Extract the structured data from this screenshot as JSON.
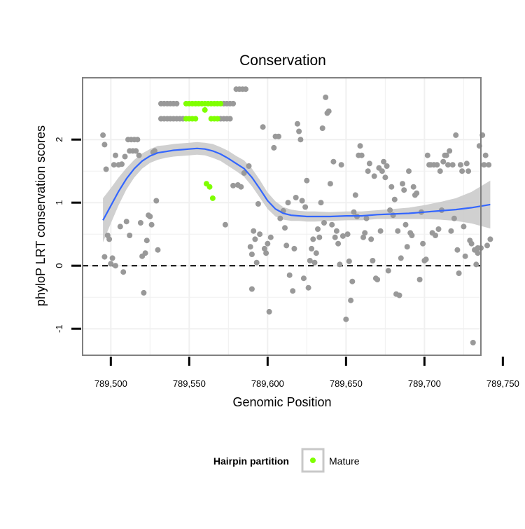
{
  "chart_data": {
    "type": "scatter",
    "title": "Conservation",
    "xlabel": "Genomic Position",
    "ylabel": "phyloP LRT conservation scores",
    "xlim": [
      789482,
      789736
    ],
    "ylim": [
      -1.42,
      2.98
    ],
    "x_ticks": [
      {
        "value": 789500,
        "label": "789,500"
      },
      {
        "value": 789550,
        "label": "789,550"
      },
      {
        "value": 789600,
        "label": "789,600"
      },
      {
        "value": 789650,
        "label": "789,650"
      },
      {
        "value": 789700,
        "label": "789,700"
      },
      {
        "value": 789750,
        "label": "789,750"
      }
    ],
    "y_ticks": [
      {
        "value": -1,
        "label": "-1"
      },
      {
        "value": 0,
        "label": "0"
      },
      {
        "value": 1,
        "label": "1"
      },
      {
        "value": 2,
        "label": "2"
      }
    ],
    "grid": true,
    "reference_line": {
      "y": 0,
      "style": "dashed"
    },
    "legend": {
      "title": "Hairpin partition",
      "position": "bottom",
      "entries": [
        {
          "label": "Mature",
          "color": "#7fff00"
        }
      ]
    },
    "colors": {
      "other_points": "#999999",
      "mature_points": "#7fff00",
      "smooth_line": "#3366ff",
      "confidence_band": "#c8c8c8",
      "panel_border": "#808080",
      "grid": "#f0f0f0"
    },
    "series": [
      {
        "color": "#999999",
        "points": [
          [
            789495,
            2.07
          ],
          [
            789496,
            1.92
          ],
          [
            789497,
            1.53
          ],
          [
            789498,
            0.48
          ],
          [
            789499,
            0.42
          ],
          [
            789500,
            0.03
          ],
          [
            789496,
            0.14
          ],
          [
            789501,
            0.12
          ],
          [
            789503,
            0.0
          ],
          [
            789502,
            1.6
          ],
          [
            789503,
            1.75
          ],
          [
            789505,
            1.6
          ],
          [
            789506,
            0.62
          ],
          [
            789508,
            -0.1
          ],
          [
            789507,
            1.61
          ],
          [
            789509,
            1.73
          ],
          [
            789511,
            2.0
          ],
          [
            789512,
            1.82
          ],
          [
            789513,
            2.0
          ],
          [
            789514,
            1.82
          ],
          [
            789515,
            2.0
          ],
          [
            789516,
            1.82
          ],
          [
            789517,
            2.0
          ],
          [
            789518,
            1.75
          ],
          [
            789519,
            0.68
          ],
          [
            789520,
            0.15
          ],
          [
            789521,
            -0.43
          ],
          [
            789522,
            0.2
          ],
          [
            789523,
            0.4
          ],
          [
            789524,
            0.8
          ],
          [
            789525,
            0.78
          ],
          [
            789526,
            0.65
          ],
          [
            789527,
            1.8
          ],
          [
            789528,
            1.82
          ],
          [
            789529,
            1.03
          ],
          [
            789530,
            0.25
          ],
          [
            789510,
            0.7
          ],
          [
            789512,
            0.48
          ],
          [
            789532,
            2.57
          ],
          [
            789534,
            2.57
          ],
          [
            789536,
            2.57
          ],
          [
            789538,
            2.57
          ],
          [
            789540,
            2.57
          ],
          [
            789542,
            2.57
          ],
          [
            789532,
            2.33
          ],
          [
            789534,
            2.33
          ],
          [
            789536,
            2.33
          ],
          [
            789538,
            2.33
          ],
          [
            789540,
            2.33
          ],
          [
            789542,
            2.33
          ],
          [
            789544,
            2.33
          ],
          [
            789546,
            2.33
          ],
          [
            789572,
            2.57
          ],
          [
            789574,
            2.57
          ],
          [
            789576,
            2.57
          ],
          [
            789578,
            2.57
          ],
          [
            789570,
            2.33
          ],
          [
            789572,
            2.33
          ],
          [
            789574,
            2.33
          ],
          [
            789576,
            2.33
          ],
          [
            789580,
            2.8
          ],
          [
            789582,
            2.8
          ],
          [
            789584,
            2.8
          ],
          [
            789586,
            2.8
          ],
          [
            789573,
            0.65
          ],
          [
            789578,
            1.27
          ],
          [
            789581,
            1.28
          ],
          [
            789583,
            1.25
          ],
          [
            789585,
            1.47
          ],
          [
            789588,
            1.58
          ],
          [
            789589,
            0.3
          ],
          [
            789590,
            0.18
          ],
          [
            789591,
            0.55
          ],
          [
            789592,
            0.42
          ],
          [
            789593,
            0.05
          ],
          [
            789594,
            0.98
          ],
          [
            789595,
            0.5
          ],
          [
            789597,
            2.2
          ],
          [
            789598,
            0.27
          ],
          [
            789599,
            0.2
          ],
          [
            789600,
            0.35
          ],
          [
            789601,
            -0.73
          ],
          [
            789590,
            -0.37
          ],
          [
            789602,
            0.45
          ],
          [
            789604,
            1.87
          ],
          [
            789605,
            2.05
          ],
          [
            789607,
            2.05
          ],
          [
            789608,
            0.75
          ],
          [
            789610,
            0.87
          ],
          [
            789611,
            0.6
          ],
          [
            789612,
            0.32
          ],
          [
            789613,
            1.0
          ],
          [
            789614,
            -0.15
          ],
          [
            789616,
            -0.4
          ],
          [
            789617,
            0.27
          ],
          [
            789618,
            1.08
          ],
          [
            789619,
            2.25
          ],
          [
            789620,
            2.13
          ],
          [
            789621,
            2.0
          ],
          [
            789622,
            1.03
          ],
          [
            789623,
            -0.2
          ],
          [
            789624,
            0.93
          ],
          [
            789625,
            1.35
          ],
          [
            789626,
            -0.35
          ],
          [
            789627,
            0.08
          ],
          [
            789628,
            0.27
          ],
          [
            789629,
            0.42
          ],
          [
            789630,
            0.05
          ],
          [
            789631,
            0.2
          ],
          [
            789632,
            0.58
          ],
          [
            789633,
            0.45
          ],
          [
            789634,
            1.0
          ],
          [
            789635,
            2.18
          ],
          [
            789636,
            0.68
          ],
          [
            789637,
            2.67
          ],
          [
            789638,
            2.42
          ],
          [
            789639,
            2.45
          ],
          [
            789640,
            1.3
          ],
          [
            789641,
            0.65
          ],
          [
            789642,
            1.65
          ],
          [
            789643,
            0.45
          ],
          [
            789644,
            0.55
          ],
          [
            789645,
            0.35
          ],
          [
            789646,
            0.02
          ],
          [
            789647,
            1.6
          ],
          [
            789648,
            0.47
          ],
          [
            789650,
            -0.85
          ],
          [
            789651,
            0.5
          ],
          [
            789652,
            0.07
          ],
          [
            789653,
            -0.55
          ],
          [
            789654,
            -0.25
          ],
          [
            789655,
            0.85
          ],
          [
            789656,
            1.12
          ],
          [
            789657,
            0.78
          ],
          [
            789658,
            1.75
          ],
          [
            789659,
            1.9
          ],
          [
            789660,
            1.75
          ],
          [
            789661,
            0.45
          ],
          [
            789662,
            0.52
          ],
          [
            789663,
            0.75
          ],
          [
            789664,
            1.5
          ],
          [
            789665,
            1.62
          ],
          [
            789666,
            0.42
          ],
          [
            789667,
            0.08
          ],
          [
            789668,
            1.42
          ],
          [
            789669,
            -0.2
          ],
          [
            789670,
            -0.22
          ],
          [
            789671,
            1.55
          ],
          [
            789672,
            0.55
          ],
          [
            789673,
            1.5
          ],
          [
            789674,
            1.65
          ],
          [
            789675,
            1.4
          ],
          [
            789676,
            1.58
          ],
          [
            789677,
            -0.08
          ],
          [
            789678,
            0.88
          ],
          [
            789679,
            1.25
          ],
          [
            789680,
            0.8
          ],
          [
            789681,
            1.05
          ],
          [
            789682,
            -0.45
          ],
          [
            789683,
            0.55
          ],
          [
            789684,
            -0.47
          ],
          [
            789685,
            0.12
          ],
          [
            789686,
            1.3
          ],
          [
            789687,
            1.2
          ],
          [
            789688,
            0.65
          ],
          [
            789689,
            0.3
          ],
          [
            789690,
            1.5
          ],
          [
            789691,
            0.52
          ],
          [
            789692,
            0.48
          ],
          [
            789693,
            1.25
          ],
          [
            789694,
            1.12
          ],
          [
            789695,
            1.15
          ],
          [
            789697,
            -0.22
          ],
          [
            789698,
            0.85
          ],
          [
            789699,
            0.35
          ],
          [
            789700,
            0.08
          ],
          [
            789701,
            0.1
          ],
          [
            789702,
            1.75
          ],
          [
            789703,
            1.6
          ],
          [
            789704,
            1.6
          ],
          [
            789705,
            0.52
          ],
          [
            789706,
            1.6
          ],
          [
            789707,
            0.48
          ],
          [
            789708,
            1.6
          ],
          [
            789709,
            0.58
          ],
          [
            789710,
            1.5
          ],
          [
            789711,
            0.88
          ],
          [
            789712,
            1.65
          ],
          [
            789713,
            1.75
          ],
          [
            789714,
            1.75
          ],
          [
            789715,
            1.6
          ],
          [
            789716,
            1.82
          ],
          [
            789717,
            0.55
          ],
          [
            789718,
            1.6
          ],
          [
            789719,
            0.75
          ],
          [
            789720,
            2.07
          ],
          [
            789721,
            0.25
          ],
          [
            789722,
            -0.12
          ],
          [
            789723,
            1.6
          ],
          [
            789724,
            1.5
          ],
          [
            789725,
            0.62
          ],
          [
            789726,
            0.15
          ],
          [
            789727,
            1.62
          ],
          [
            789728,
            1.5
          ],
          [
            789729,
            0.4
          ],
          [
            789730,
            0.35
          ],
          [
            789731,
            -1.22
          ],
          [
            789732,
            0.25
          ],
          [
            789733,
            0.02
          ],
          [
            789734,
            0.2
          ],
          [
            789735,
            1.9
          ],
          [
            789736,
            0.28
          ],
          [
            789737,
            2.07
          ],
          [
            789738,
            1.6
          ],
          [
            789739,
            1.75
          ],
          [
            789740,
            0.32
          ],
          [
            789741,
            1.6
          ],
          [
            789742,
            0.42
          ],
          [
            789734,
            0.28
          ]
        ]
      },
      {
        "name": "Mature",
        "color": "#7fff00",
        "points": [
          [
            789548,
            2.57
          ],
          [
            789550,
            2.57
          ],
          [
            789552,
            2.57
          ],
          [
            789554,
            2.57
          ],
          [
            789556,
            2.57
          ],
          [
            789558,
            2.57
          ],
          [
            789560,
            2.57
          ],
          [
            789562,
            2.57
          ],
          [
            789564,
            2.57
          ],
          [
            789566,
            2.57
          ],
          [
            789568,
            2.57
          ],
          [
            789570,
            2.57
          ],
          [
            789548,
            2.33
          ],
          [
            789550,
            2.33
          ],
          [
            789552,
            2.33
          ],
          [
            789554,
            2.33
          ],
          [
            789564,
            2.33
          ],
          [
            789566,
            2.33
          ],
          [
            789568,
            2.33
          ],
          [
            789560,
            2.47
          ],
          [
            789561,
            1.3
          ],
          [
            789563,
            1.25
          ],
          [
            789565,
            1.07
          ]
        ]
      }
    ],
    "smooth": {
      "points": [
        [
          789495,
          0.72
        ],
        [
          789500,
          0.95
        ],
        [
          789505,
          1.18
        ],
        [
          789510,
          1.38
        ],
        [
          789515,
          1.54
        ],
        [
          789520,
          1.66
        ],
        [
          789525,
          1.74
        ],
        [
          789530,
          1.79
        ],
        [
          789535,
          1.81
        ],
        [
          789540,
          1.83
        ],
        [
          789545,
          1.84
        ],
        [
          789550,
          1.85
        ],
        [
          789555,
          1.86
        ],
        [
          789560,
          1.85
        ],
        [
          789565,
          1.82
        ],
        [
          789570,
          1.77
        ],
        [
          789575,
          1.7
        ],
        [
          789580,
          1.62
        ],
        [
          789585,
          1.54
        ],
        [
          789590,
          1.4
        ],
        [
          789595,
          1.22
        ],
        [
          789600,
          1.03
        ],
        [
          789605,
          0.9
        ],
        [
          789610,
          0.83
        ],
        [
          789615,
          0.8
        ],
        [
          789620,
          0.79
        ],
        [
          789625,
          0.78
        ],
        [
          789630,
          0.78
        ],
        [
          789640,
          0.78
        ],
        [
          789650,
          0.79
        ],
        [
          789660,
          0.79
        ],
        [
          789670,
          0.81
        ],
        [
          789680,
          0.82
        ],
        [
          789690,
          0.83
        ],
        [
          789700,
          0.85
        ],
        [
          789710,
          0.87
        ],
        [
          789720,
          0.89
        ],
        [
          789730,
          0.92
        ],
        [
          789742,
          0.97
        ]
      ],
      "band_half_width": [
        0.35,
        0.28,
        0.22,
        0.17,
        0.14,
        0.12,
        0.11,
        0.11,
        0.1,
        0.1,
        0.1,
        0.1,
        0.1,
        0.1,
        0.11,
        0.11,
        0.12,
        0.12,
        0.13,
        0.14,
        0.14,
        0.13,
        0.12,
        0.1,
        0.09,
        0.08,
        0.08,
        0.08,
        0.07,
        0.07,
        0.07,
        0.07,
        0.08,
        0.09,
        0.11,
        0.14,
        0.18,
        0.25,
        0.38
      ]
    }
  }
}
